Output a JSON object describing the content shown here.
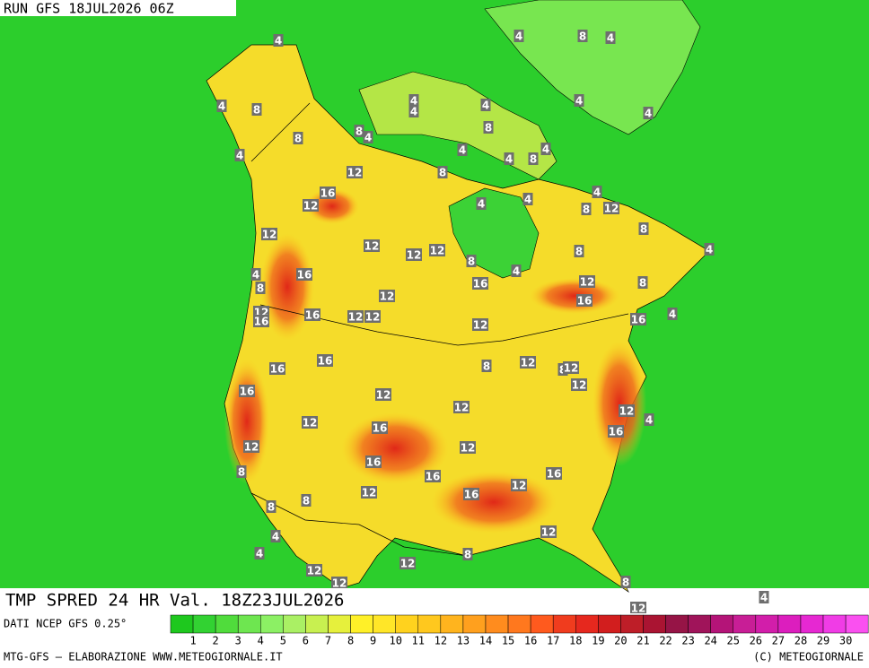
{
  "header": {
    "title": "RUN GFS 18JUL2026 06Z"
  },
  "map": {
    "labels": [
      "4",
      "4",
      "8",
      "4",
      "4",
      "8",
      "4",
      "4",
      "4",
      "4",
      "4",
      "8",
      "8",
      "4",
      "8",
      "4",
      "4",
      "4",
      "4",
      "8",
      "12",
      "8",
      "16",
      "12",
      "4",
      "4",
      "4",
      "8",
      "12",
      "8",
      "12",
      "12",
      "12",
      "12",
      "8",
      "4",
      "8",
      "4",
      "16",
      "4",
      "16",
      "12",
      "8",
      "8",
      "12",
      "16",
      "12",
      "16",
      "16",
      "12",
      "12",
      "16",
      "4",
      "12",
      "16",
      "16",
      "8",
      "12",
      "8",
      "12",
      "12",
      "16",
      "12",
      "12",
      "12",
      "4",
      "12",
      "16",
      "16",
      "12",
      "12",
      "16",
      "16",
      "16",
      "8",
      "12",
      "12",
      "16",
      "8",
      "8",
      "4",
      "12",
      "4",
      "8",
      "12",
      "12",
      "12",
      "8",
      "4",
      "12"
    ]
  },
  "footer": {
    "title": "TMP SPRED 24 HR Val. 18Z23JUL2026",
    "source": "DATI NCEP GFS 0.25°",
    "credit": "MTG-GFS — ELABORAZIONE WWW.METEOGIORNALE.IT",
    "copyright": "(C) METEOGIORNALE"
  },
  "legend": {
    "labels": [
      1,
      2,
      3,
      4,
      5,
      6,
      7,
      8,
      9,
      10,
      11,
      12,
      13,
      14,
      15,
      16,
      17,
      18,
      19,
      20,
      21,
      22,
      23,
      24,
      25,
      26,
      27,
      28,
      29,
      30
    ],
    "colors": [
      "#1ec81e",
      "#32d232",
      "#50dc3c",
      "#6ee650",
      "#8cf064",
      "#aaf064",
      "#c8f050",
      "#e6f03c",
      "#fff028",
      "#ffe628",
      "#ffd21e",
      "#ffc81e",
      "#ffb41e",
      "#ffa01e",
      "#ff8c1e",
      "#ff781e",
      "#ff5a1e",
      "#f03c1e",
      "#e6281e",
      "#d21e1e",
      "#be1e28",
      "#aa1432",
      "#961446",
      "#a0145a",
      "#b41478",
      "#c81e96",
      "#d21eaa",
      "#dc1ebe",
      "#e628d2",
      "#f03ce6",
      "#fa50f0"
    ]
  }
}
